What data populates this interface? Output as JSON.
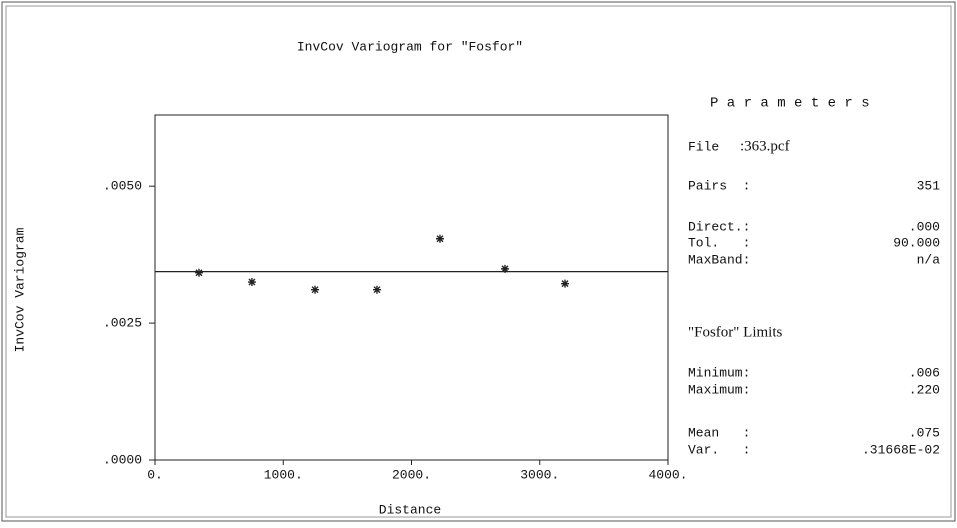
{
  "chart_data": {
    "type": "scatter",
    "title": "InvCov Variogram for \"Fosfor\"",
    "xlabel": "Distance",
    "ylabel": "InvCov Variogram",
    "x": [
      343,
      756,
      1248,
      1731,
      2222,
      2729,
      3197
    ],
    "values": [
      0.00342,
      0.00325,
      0.00311,
      0.00311,
      0.00404,
      0.00349,
      0.00322
    ],
    "hline": 0.00344,
    "color": "#222",
    "xlim": [
      0,
      4000
    ],
    "xticks": [
      {
        "value": 0,
        "label": "0."
      },
      {
        "value": 1000,
        "label": "1000."
      },
      {
        "value": 2000,
        "label": "2000."
      },
      {
        "value": 3000,
        "label": "3000."
      },
      {
        "value": 4000,
        "label": "4000."
      }
    ],
    "ylim": [
      0,
      0.0063
    ],
    "yticks": [
      {
        "value": 0,
        "label": ".0000"
      },
      {
        "value": 0.0025,
        "label": ".0025"
      },
      {
        "value": 0.005,
        "label": ".0050"
      }
    ]
  },
  "panel": {
    "title": "P a r a m e t e r s",
    "rows": [
      [
        "File",
        ":363.pcf"
      ],
      [
        "Pairs  :",
        "351"
      ],
      [
        "Direct.:",
        ".000"
      ],
      [
        "Tol.   :",
        "90.000"
      ],
      [
        "MaxBand:",
        "n/a"
      ]
    ],
    "limits_title": "\"Fosfor\" Limits",
    "limits": [
      [
        "Minimum:",
        ".006"
      ],
      [
        "Maximum:",
        ".220"
      ],
      [
        "Mean   :",
        ".075"
      ],
      [
        "Var.   :",
        ".31668E-02"
      ]
    ]
  }
}
